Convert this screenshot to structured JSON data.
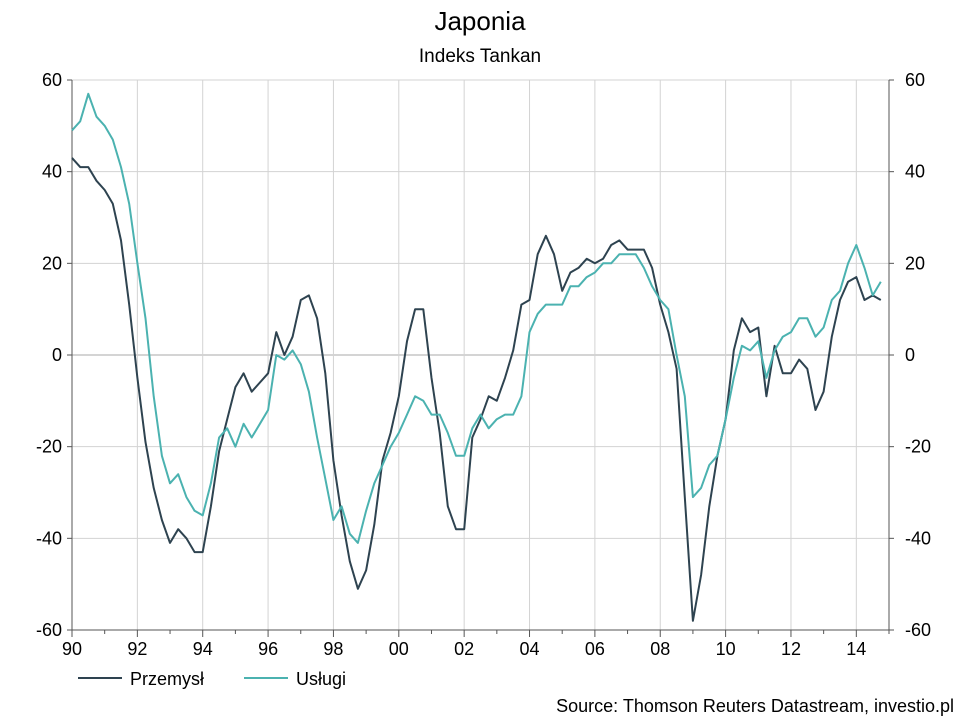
{
  "chart_data": {
    "type": "line",
    "title": "Japonia",
    "subtitle": "Indeks Tankan",
    "source": "Source: Thomson Reuters Datastream, investio.pl",
    "x_tick_labels": [
      "90",
      "92",
      "94",
      "96",
      "98",
      "00",
      "02",
      "04",
      "06",
      "08",
      "10",
      "12",
      "14"
    ],
    "x_ticks": [
      1990,
      1992,
      1994,
      1996,
      1998,
      2000,
      2002,
      2004,
      2006,
      2008,
      2010,
      2012,
      2014
    ],
    "xlim": [
      1990,
      2015
    ],
    "ylim": [
      -60,
      60
    ],
    "y_ticks": [
      -60,
      -40,
      -20,
      0,
      20,
      40,
      60
    ],
    "y_tick_labels": [
      "-60",
      "-40",
      "-20",
      "0",
      "20",
      "40",
      "60"
    ],
    "secondary_y_axis": true,
    "grid": true,
    "legend_position": "bottom-left",
    "x": [
      1990.0,
      1990.25,
      1990.5,
      1990.75,
      1991.0,
      1991.25,
      1991.5,
      1991.75,
      1992.0,
      1992.25,
      1992.5,
      1992.75,
      1993.0,
      1993.25,
      1993.5,
      1993.75,
      1994.0,
      1994.25,
      1994.5,
      1994.75,
      1995.0,
      1995.25,
      1995.5,
      1995.75,
      1996.0,
      1996.25,
      1996.5,
      1996.75,
      1997.0,
      1997.25,
      1997.5,
      1997.75,
      1998.0,
      1998.25,
      1998.5,
      1998.75,
      1999.0,
      1999.25,
      1999.5,
      1999.75,
      2000.0,
      2000.25,
      2000.5,
      2000.75,
      2001.0,
      2001.25,
      2001.5,
      2001.75,
      2002.0,
      2002.25,
      2002.5,
      2002.75,
      2003.0,
      2003.25,
      2003.5,
      2003.75,
      2004.0,
      2004.25,
      2004.5,
      2004.75,
      2005.0,
      2005.25,
      2005.5,
      2005.75,
      2006.0,
      2006.25,
      2006.5,
      2006.75,
      2007.0,
      2007.25,
      2007.5,
      2007.75,
      2008.0,
      2008.25,
      2008.5,
      2008.75,
      2009.0,
      2009.25,
      2009.5,
      2009.75,
      2010.0,
      2010.25,
      2010.5,
      2010.75,
      2011.0,
      2011.25,
      2011.5,
      2011.75,
      2012.0,
      2012.25,
      2012.5,
      2012.75,
      2013.0,
      2013.25,
      2013.5,
      2013.75,
      2014.0,
      2014.25,
      2014.5,
      2014.75
    ],
    "series": [
      {
        "name": "Przemysł",
        "color": "#2e4350",
        "values": [
          43,
          41,
          41,
          38,
          36,
          33,
          25,
          11,
          -5,
          -19,
          -29,
          -36,
          -41,
          -38,
          -40,
          -43,
          -43,
          -33,
          -21,
          -14,
          -7,
          -4,
          -8,
          -6,
          -4,
          5,
          0,
          4,
          12,
          13,
          8,
          -4,
          -23,
          -35,
          -45,
          -51,
          -47,
          -37,
          -23,
          -17,
          -9,
          3,
          10,
          10,
          -5,
          -17,
          -33,
          -38,
          -38,
          -18,
          -14,
          -9,
          -10,
          -5,
          1,
          11,
          12,
          22,
          26,
          22,
          14,
          18,
          19,
          21,
          20,
          21,
          24,
          25,
          23,
          23,
          23,
          19,
          11,
          5,
          -3,
          -31,
          -58,
          -48,
          -33,
          -22,
          -14,
          1,
          8,
          5,
          6,
          -9,
          2,
          -4,
          -4,
          -1,
          -3,
          -12,
          -8,
          4,
          12,
          16,
          17,
          12,
          13,
          12
        ]
      },
      {
        "name": "Usługi",
        "color": "#4bb2b0",
        "values": [
          49,
          51,
          57,
          52,
          50,
          47,
          41,
          33,
          20,
          8,
          -9,
          -22,
          -28,
          -26,
          -31,
          -34,
          -35,
          -28,
          -18,
          -16,
          -20,
          -15,
          -18,
          -15,
          -12,
          0,
          -1,
          1,
          -2,
          -8,
          -18,
          -27,
          -36,
          -33,
          -39,
          -41,
          -34,
          -28,
          -24,
          -20,
          -17,
          -13,
          -9,
          -10,
          -13,
          -13,
          -17,
          -22,
          -22,
          -16,
          -13,
          -16,
          -14,
          -13,
          -13,
          -9,
          5,
          9,
          11,
          11,
          11,
          15,
          15,
          17,
          18,
          20,
          20,
          22,
          22,
          22,
          19,
          15,
          12,
          10,
          0,
          -9,
          -31,
          -29,
          -24,
          -22,
          -14,
          -5,
          2,
          1,
          3,
          -5,
          1,
          4,
          5,
          8,
          8,
          4,
          6,
          12,
          14,
          20,
          24,
          19,
          13,
          16
        ]
      }
    ]
  }
}
